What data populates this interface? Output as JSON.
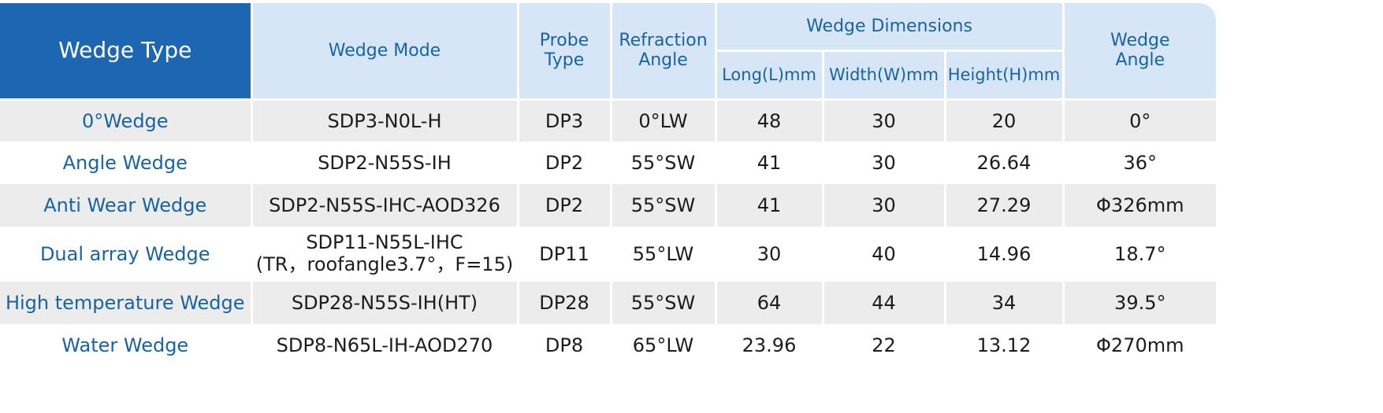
{
  "header": {
    "wedge_type": "Wedge Type",
    "wedge_mode": "Wedge Mode",
    "probe_type_line1": "Probe",
    "probe_type_line2": "Type",
    "refraction_line1": "Refraction",
    "refraction_line2": "Angle",
    "dimensions": "Wedge Dimensions",
    "long": "Long(L)mm",
    "width": "Width(W)mm",
    "height": "Height(H)mm",
    "wedge_angle_line1": "Wedge",
    "wedge_angle_line2": "Angle"
  },
  "rows": [
    {
      "type": "0°Wedge",
      "mode": "SDP3-N0L-H",
      "mode2": "",
      "probe": "DP3",
      "refraction": "0°LW",
      "long": "48",
      "width": "30",
      "height": "20",
      "angle": "0°"
    },
    {
      "type": "Angle Wedge",
      "mode": "SDP2-N55S-IH",
      "mode2": "",
      "probe": "DP2",
      "refraction": "55°SW",
      "long": "41",
      "width": "30",
      "height": "26.64",
      "angle": "36°"
    },
    {
      "type": "Anti Wear Wedge",
      "mode": "SDP2-N55S-IHC-AOD326",
      "mode2": "",
      "probe": "DP2",
      "refraction": "55°SW",
      "long": "41",
      "width": "30",
      "height": "27.29",
      "angle": "Φ326mm"
    },
    {
      "type": "Dual array Wedge",
      "mode": "SDP11-N55L-IHC",
      "mode2": "(TR，roofangle3.7°，F=15)",
      "probe": "DP11",
      "refraction": "55°LW",
      "long": "30",
      "width": "40",
      "height": "14.96",
      "angle": "18.7°"
    },
    {
      "type": "High temperature Wedge",
      "mode": "SDP28-N55S-IH(HT)",
      "mode2": "",
      "probe": "DP28",
      "refraction": "55°SW",
      "long": "64",
      "width": "44",
      "height": "34",
      "angle": "39.5°"
    },
    {
      "type": "Water Wedge",
      "mode": "SDP8-N65L-IH-AOD270",
      "mode2": "",
      "probe": "DP8",
      "refraction": "65°LW",
      "long": "23.96",
      "width": "22",
      "height": "13.12",
      "angle": "Φ270mm"
    }
  ]
}
